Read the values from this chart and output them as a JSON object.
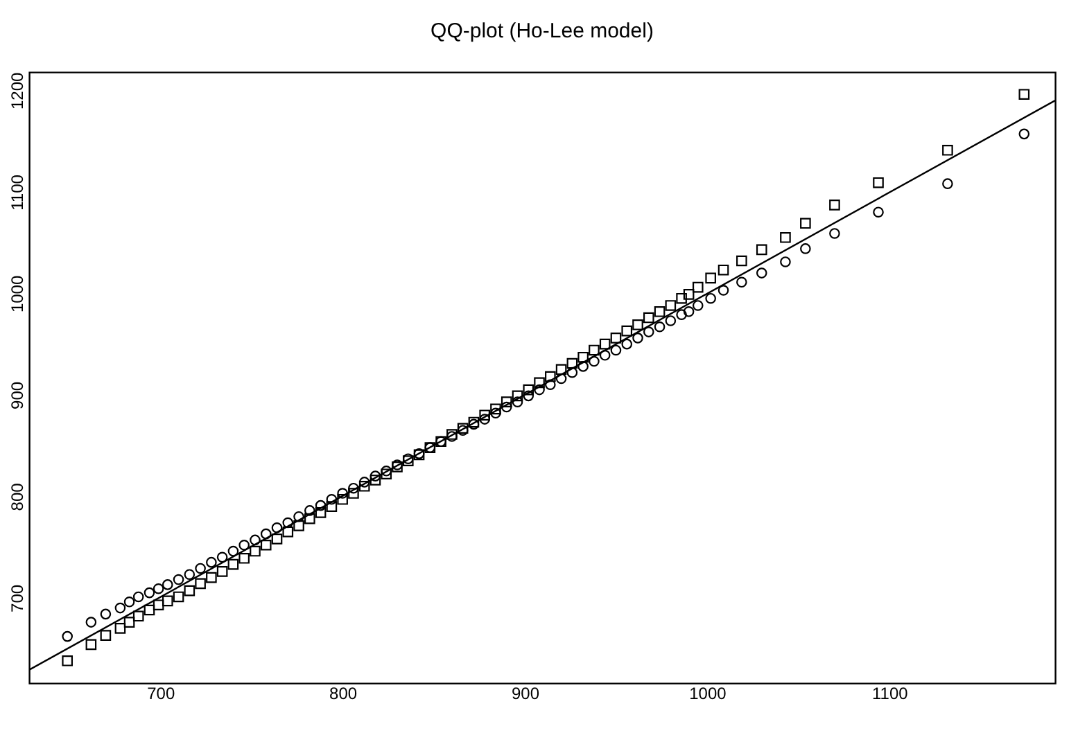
{
  "chart_data": {
    "type": "scatter",
    "title": "QQ-plot (Ho-Lee model)",
    "xlim": [
      628,
      1191
    ],
    "ylim": [
      616,
      1218
    ],
    "xticks": [
      700,
      800,
      900,
      1000,
      1100
    ],
    "yticks": [
      700,
      800,
      900,
      1000,
      1100,
      1200
    ],
    "grid": false,
    "series": [
      {
        "marker": "square",
        "color": "#000000",
        "x": [
          649,
          662,
          670,
          678,
          683,
          688,
          694,
          699,
          704,
          710,
          716,
          722,
          728,
          734,
          740,
          746,
          752,
          758,
          764,
          770,
          776,
          782,
          788,
          794,
          800,
          806,
          812,
          818,
          824,
          830,
          836,
          842,
          848,
          854,
          860,
          866,
          872,
          878,
          884,
          890,
          896,
          902,
          908,
          914,
          920,
          926,
          932,
          938,
          944,
          950,
          956,
          962,
          968,
          974,
          980,
          986,
          990,
          995,
          1002,
          1009,
          1019,
          1030,
          1043,
          1054,
          1070,
          1094,
          1132,
          1174
        ],
        "values": [
          638,
          654,
          663,
          670,
          676,
          682,
          688,
          693,
          697,
          701,
          707,
          714,
          720,
          726,
          733,
          739,
          746,
          752,
          758,
          765,
          771,
          778,
          784,
          790,
          797,
          803,
          810,
          816,
          822,
          829,
          835,
          841,
          848,
          854,
          861,
          867,
          873,
          880,
          886,
          893,
          899,
          905,
          912,
          918,
          925,
          931,
          937,
          944,
          950,
          956,
          963,
          969,
          976,
          982,
          988,
          995,
          999,
          1006,
          1015,
          1023,
          1032,
          1043,
          1055,
          1069,
          1087,
          1109,
          1141,
          1196
        ]
      },
      {
        "marker": "circle",
        "color": "#000000",
        "x": [
          649,
          662,
          670,
          678,
          683,
          688,
          694,
          699,
          704,
          710,
          716,
          722,
          728,
          734,
          740,
          746,
          752,
          758,
          764,
          770,
          776,
          782,
          788,
          794,
          800,
          806,
          812,
          818,
          824,
          830,
          836,
          842,
          848,
          854,
          860,
          866,
          872,
          878,
          884,
          890,
          896,
          902,
          908,
          914,
          920,
          926,
          932,
          938,
          944,
          950,
          956,
          962,
          968,
          974,
          980,
          986,
          990,
          995,
          1002,
          1009,
          1019,
          1030,
          1043,
          1054,
          1070,
          1094,
          1132,
          1174
        ],
        "values": [
          662,
          676,
          684,
          690,
          696,
          701,
          705,
          709,
          713,
          718,
          723,
          729,
          735,
          740,
          746,
          752,
          757,
          763,
          769,
          774,
          780,
          786,
          791,
          797,
          803,
          808,
          814,
          820,
          825,
          831,
          837,
          842,
          848,
          854,
          859,
          865,
          871,
          876,
          882,
          888,
          893,
          899,
          905,
          910,
          916,
          922,
          928,
          933,
          939,
          944,
          950,
          956,
          962,
          967,
          973,
          979,
          982,
          988,
          995,
          1003,
          1011,
          1020,
          1031,
          1044,
          1059,
          1080,
          1108,
          1157
        ]
      },
      {
        "type": "line",
        "marker": "none",
        "line_style": "solid",
        "color": "#000000",
        "x": [
          628,
          1191
        ],
        "values": [
          629,
          1190
        ]
      }
    ]
  }
}
